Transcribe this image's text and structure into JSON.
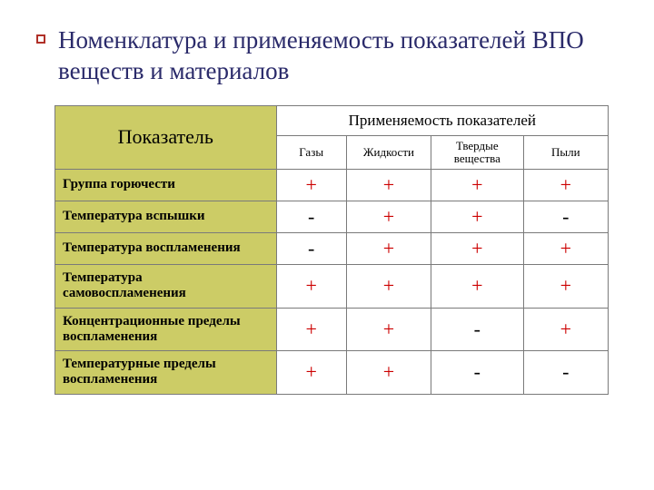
{
  "title": "Номенклатура и применяемость показателей ВПО веществ и материалов",
  "table": {
    "row_header_label": "Показатель",
    "app_header_label": "Применяемость показателей",
    "subheaders": [
      "Газы",
      "Жидкости",
      "Твердые вещества",
      "Пыли"
    ],
    "rows": [
      {
        "label": "Группа горючести",
        "cells": [
          "+",
          "+",
          "+",
          "+"
        ]
      },
      {
        "label": "Температура вспышки",
        "cells": [
          "-",
          "+",
          "+",
          "-"
        ]
      },
      {
        "label": "Температура воспламенения",
        "cells": [
          "-",
          "+",
          "+",
          "+"
        ]
      },
      {
        "label": "Температура самовоспламенения",
        "cells": [
          "+",
          "+",
          "+",
          "+"
        ]
      },
      {
        "label": "Концентрационные пределы воспламенения",
        "cells": [
          "+",
          "+",
          "-",
          "+"
        ]
      },
      {
        "label": "Температурные пределы воспламенения",
        "cells": [
          "+",
          "+",
          "-",
          "-"
        ]
      }
    ],
    "colors": {
      "header_bg": "#cccc66",
      "plus_color": "#cc0000",
      "minus_color": "#000000",
      "border_color": "#7a7a7a",
      "title_color": "#2a2a6a"
    },
    "fontsizes": {
      "title": 27,
      "row_header_label": 22,
      "app_header": 17,
      "sub": 13,
      "row_label": 15,
      "cell": 22
    }
  }
}
